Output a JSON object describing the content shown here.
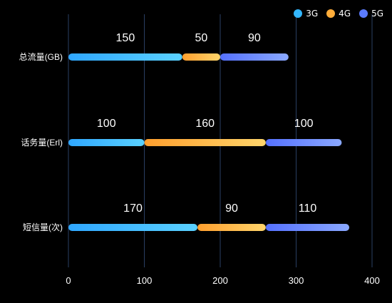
{
  "chart_data": {
    "type": "bar",
    "orientation": "horizontal",
    "stacked": true,
    "categories": [
      "总流量(GB)",
      "话务量(Erl)",
      "短信量(次)"
    ],
    "series": [
      {
        "name": "3G",
        "values": [
          150,
          100,
          170
        ],
        "color_start": "#2fa7ff",
        "color_end": "#5ad1ff",
        "legend_color": "#33b7ff"
      },
      {
        "name": "4G",
        "values": [
          50,
          160,
          90
        ],
        "color_start": "#ff9f2e",
        "color_end": "#ffd56b",
        "legend_color": "#ffad3a"
      },
      {
        "name": "5G",
        "values": [
          90,
          100,
          110
        ],
        "color_start": "#5571ff",
        "color_end": "#8aa8ff",
        "legend_color": "#5b7bff"
      }
    ],
    "xlim": [
      0,
      400
    ],
    "xticks": [
      0,
      100,
      200,
      300,
      400
    ],
    "grid": true,
    "legend_position": "top-right",
    "data_labels": true
  }
}
